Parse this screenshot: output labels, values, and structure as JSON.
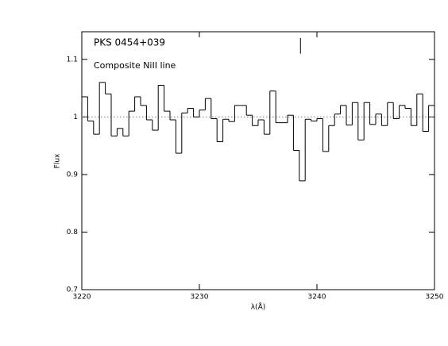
{
  "chart_data": {
    "type": "histogram",
    "annotations": [
      "PKS  0454+039",
      "Composite NiII  line"
    ],
    "xlabel": "λ(Å)",
    "ylabel": "Flux",
    "bins": [
      3220,
      3220.5,
      3221,
      3221.5,
      3222,
      3222.5,
      3223,
      3223.5,
      3224,
      3224.5,
      3225,
      3225.5,
      3226,
      3226.5,
      3227,
      3227.5,
      3228,
      3228.5,
      3229,
      3229.5,
      3230,
      3230.5,
      3231,
      3231.5,
      3232,
      3232.5,
      3233,
      3233.5,
      3234,
      3234.5,
      3235,
      3235.5,
      3236,
      3236.5,
      3237,
      3237.5,
      3238,
      3238.5,
      3239,
      3239.5,
      3240,
      3240.5,
      3241,
      3241.5,
      3242,
      3242.5,
      3243,
      3243.5,
      3244,
      3244.5,
      3245,
      3245.5,
      3246,
      3246.5,
      3247,
      3247.5,
      3248,
      3248.5,
      3249,
      3249.5,
      3250
    ],
    "values": [
      1.035,
      0.993,
      0.97,
      1.06,
      1.04,
      0.967,
      0.98,
      0.967,
      1.01,
      1.035,
      1.02,
      0.995,
      0.977,
      1.055,
      1.01,
      0.995,
      0.937,
      1.007,
      1.015,
      1.0,
      1.012,
      1.032,
      0.997,
      0.957,
      0.996,
      0.992,
      1.02,
      1.02,
      1.003,
      0.985,
      0.995,
      0.97,
      1.045,
      0.99,
      0.99,
      1.003,
      0.942,
      0.889,
      0.996,
      0.993,
      0.997,
      0.94,
      0.985,
      1.005,
      1.02,
      0.986,
      1.025,
      0.96,
      1.025,
      0.987,
      1.005,
      0.985,
      1.025,
      0.997,
      1.02,
      1.015,
      0.985,
      1.04,
      0.975,
      1.02
    ],
    "color": "#000000",
    "reference_line": 1,
    "marker": {
      "x": 3238.6,
      "y": [
        1.11,
        1.137
      ]
    },
    "xlim": [
      3220,
      3250
    ],
    "ylim": [
      0.7,
      1.148
    ],
    "xticks": [
      3220,
      3230,
      3240,
      3250
    ],
    "yticks": [
      0.7,
      0.8,
      0.9,
      1,
      1.1
    ]
  }
}
